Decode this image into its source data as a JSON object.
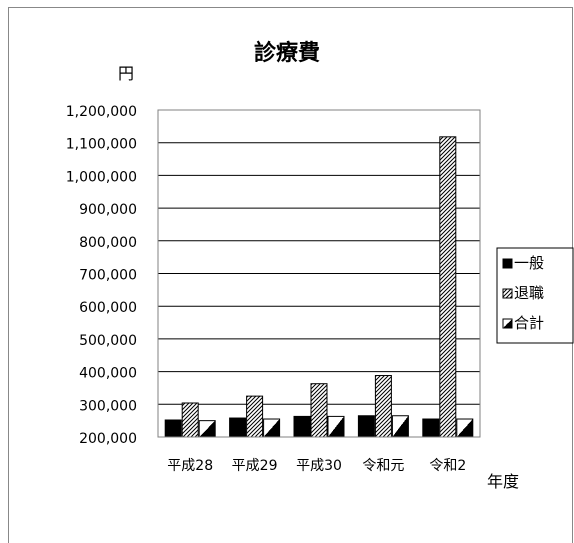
{
  "chart_data": {
    "type": "bar",
    "title": "診療費",
    "ylabel": "円",
    "xlabel": "年度",
    "categories": [
      "平成28",
      "平成29",
      "平成30",
      "令和元",
      "令和2"
    ],
    "series": [
      {
        "name": "一般",
        "values": [
          252000,
          258000,
          263000,
          265000,
          255000
        ],
        "pattern": "solid"
      },
      {
        "name": "退職",
        "values": [
          304000,
          325000,
          363000,
          388000,
          1118000
        ],
        "pattern": "diag"
      },
      {
        "name": "合計",
        "values": [
          250000,
          255000,
          263000,
          265000,
          255000
        ],
        "pattern": "half"
      }
    ],
    "ylim": [
      200000,
      1200000
    ],
    "yticks": [
      "1,200,000",
      "1,100,000",
      "1,000,000",
      "900,000",
      "800,000",
      "700,000",
      "600,000",
      "500,000",
      "400,000",
      "300,000",
      "200,000"
    ],
    "grid": true,
    "legend": "right",
    "colors": {
      "bar": "#000000",
      "background": "#ffffff",
      "grid": "#000000",
      "frame": "#888888"
    }
  }
}
